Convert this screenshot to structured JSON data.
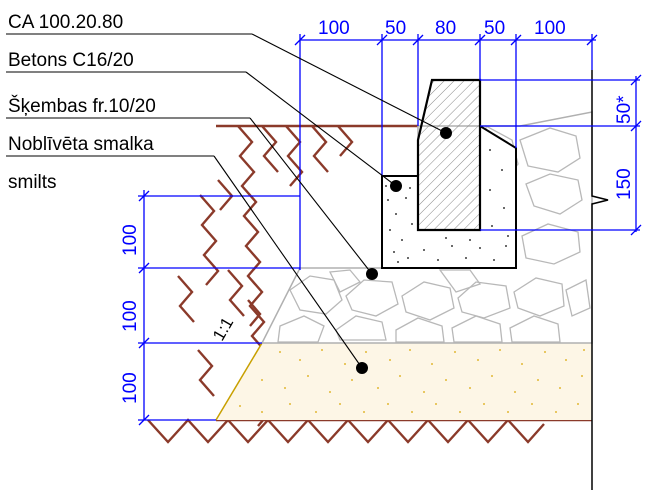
{
  "labels": {
    "curb": "CA 100.20.80",
    "concrete": "Betons C16/20",
    "gravel": "Šķembas fr.10/20",
    "sand_line1": "Noblīvēta smalka",
    "sand_line2": "smilts"
  },
  "dimensions": {
    "top": [
      "100",
      "50",
      "80",
      "50",
      "100"
    ],
    "right": [
      "50*",
      "150"
    ],
    "left": [
      "100",
      "100",
      "100"
    ]
  },
  "slope": "1:1",
  "colors": {
    "soil_hatch": "#8b3a2a",
    "dimension": "#0000ff",
    "gravel": "#b0b0b0",
    "sand": "#d9a500",
    "sand_fill": "#fdf6e6",
    "slope_line": "#c8a000"
  }
}
